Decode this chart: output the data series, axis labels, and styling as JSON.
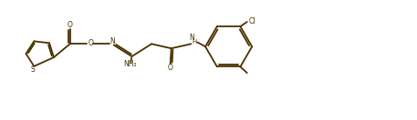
{
  "bg_color": "#ffffff",
  "line_color": "#4A3000",
  "text_color": "#4A3000",
  "lw": 1.3,
  "figsize": [
    4.57,
    1.32
  ],
  "dpi": 100,
  "xlim": [
    0,
    46.5
  ],
  "ylim": [
    0,
    13.4
  ]
}
